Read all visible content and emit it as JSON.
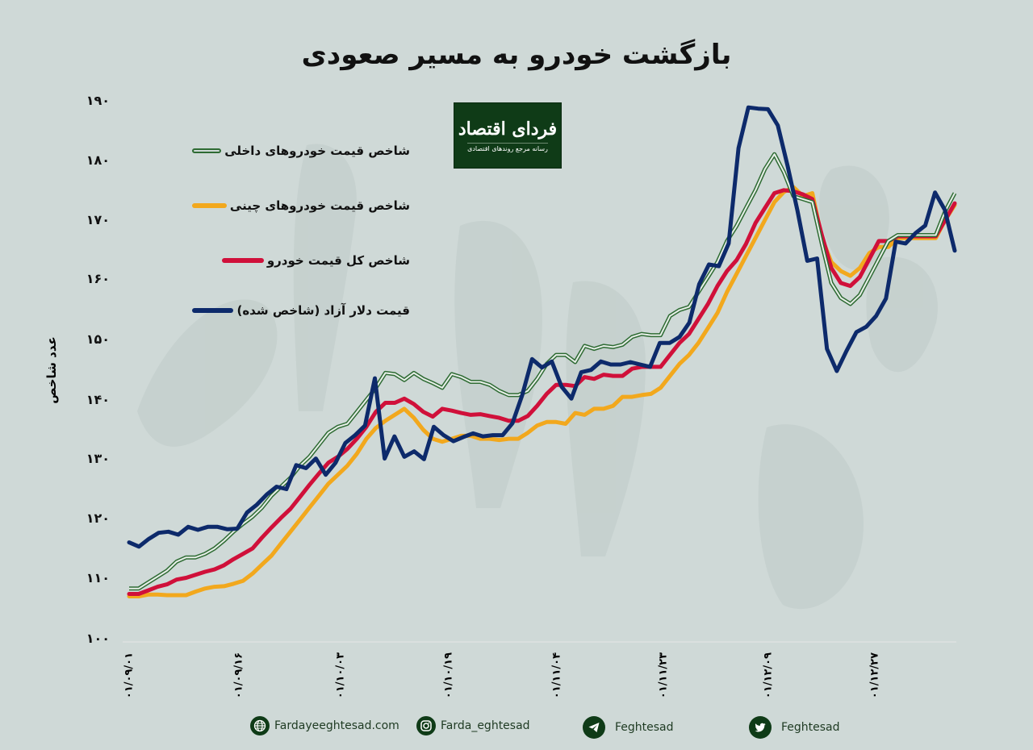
{
  "title": "بازگشت خودرو به مسیر صعودی",
  "logo": {
    "main": "فردای اقتصاد",
    "sub": "رسانه مرجع روندهای اقتصادی"
  },
  "yaxis": {
    "label": "عدد شاخص",
    "ticks": [
      "۱۹۰",
      "۱۸۰",
      "۱۷۰",
      "۱۶۰",
      "۱۵۰",
      "۱۴۰",
      "۱۳۰",
      "۱۲۰",
      "۱۱۰",
      "۱۰۰"
    ]
  },
  "xaxis": {
    "ticks": [
      "۰۱/۰۹/۰۱",
      "۰۱/۰۹/۱۶",
      "۰۱/۱۰/۰۳",
      "۰۱/۱۰/۱۹",
      "۰۱/۱۱/۰۴",
      "۰۱/۱۱/۲۳",
      "۰۱/۱۲/۰۹",
      "۰۱/۱۲/۲۷"
    ]
  },
  "legend": [
    {
      "label": "شاخص قیمت خودروهای داخلی",
      "color": "#2e6b33"
    },
    {
      "label": "شاخص قیمت خودروهای چینی",
      "color": "#f2a81d"
    },
    {
      "label": "شاخص کل قیمت خودرو",
      "color": "#d0103a"
    },
    {
      "label": "قیمت دلار آزاد (شاخص شده)",
      "color": "#0d2a6b"
    }
  ],
  "footer": [
    {
      "icon": "globe-icon",
      "text": "Fardayeeghtesad.com"
    },
    {
      "icon": "instagram-icon",
      "text": "Farda_eghtesad"
    },
    {
      "icon": "telegram-icon",
      "text": "Feghtesad"
    },
    {
      "icon": "twitter-icon",
      "text": "Feghtesad"
    }
  ],
  "chart_data": {
    "type": "line",
    "title": "بازگشت خودرو به مسیر صعودی",
    "xlabel": "",
    "ylabel": "عدد شاخص",
    "ylim": [
      100,
      190
    ],
    "x_tick_labels": [
      "01/09/01",
      "01/09/16",
      "01/10/03",
      "01/10/19",
      "01/11/04",
      "01/11/23",
      "01/12/09",
      "01/12/27"
    ],
    "legend_position": "upper-left",
    "grid": false,
    "series": [
      {
        "name": "شاخص قیمت خودروهای داخلی",
        "color": "#2e6b33",
        "values": [
          108.5,
          108.5,
          109.5,
          110.5,
          111.5,
          113,
          113.7,
          113.7,
          114.3,
          115.2,
          116.5,
          118,
          119.3,
          120.5,
          122,
          124,
          125.5,
          127,
          129,
          130.5,
          132.5,
          134.5,
          135.5,
          136,
          138,
          140,
          142,
          144.5,
          144.3,
          143.3,
          144.5,
          143.5,
          142.8,
          142,
          144.3,
          143.8,
          143,
          143,
          142.5,
          141.5,
          140.8,
          140.8,
          141.5,
          143.5,
          146,
          147.5,
          147.5,
          146.3,
          149,
          148.5,
          149,
          148.8,
          149.2,
          150.5,
          151,
          150.8,
          150.8,
          154,
          155,
          155.5,
          158,
          160.5,
          163,
          166.5,
          169,
          172,
          175,
          178.5,
          181,
          178,
          174,
          173.5,
          173,
          166,
          159.5,
          157,
          156,
          157.5,
          160.5,
          163.5,
          166.5,
          167.5,
          167.5,
          167.5,
          167.5,
          167.5,
          171.5,
          174.5
        ]
      },
      {
        "name": "شاخص قیمت خودروهای چینی",
        "color": "#f2a81d",
        "values": [
          107.2,
          107.2,
          107.5,
          107.5,
          107.4,
          107.4,
          107.4,
          108,
          108.5,
          108.8,
          108.9,
          109.3,
          109.8,
          111,
          112.5,
          114,
          116,
          118,
          120,
          122,
          124,
          126,
          127.5,
          129,
          131,
          133.5,
          135.3,
          136.5,
          137.5,
          138.5,
          137,
          135,
          133.5,
          133,
          133.5,
          134,
          134,
          133.5,
          133.5,
          133.3,
          133.5,
          133.5,
          134.5,
          135.7,
          136.3,
          136.3,
          136,
          137.8,
          137.5,
          138.5,
          138.5,
          139,
          140.5,
          140.5,
          140.8,
          141,
          142,
          144,
          146,
          147.5,
          149.5,
          152,
          154.5,
          158,
          161,
          164,
          167,
          170,
          173,
          174.7,
          175.5,
          174,
          174.5,
          167,
          163,
          161.5,
          160.7,
          162,
          164.5,
          165.5,
          165.5,
          167,
          167,
          167,
          167,
          167,
          170,
          172.5
        ]
      },
      {
        "name": "شاخص کل قیمت خودرو",
        "color": "#d0103a",
        "values": [
          107.6,
          107.6,
          108.2,
          108.8,
          109.2,
          110,
          110.3,
          110.8,
          111.3,
          111.7,
          112.4,
          113.4,
          114.3,
          115.2,
          117,
          118.7,
          120.3,
          121.8,
          123.8,
          125.8,
          127.7,
          129.5,
          130.5,
          131.8,
          133.5,
          135.5,
          138,
          139.5,
          139.5,
          140.2,
          139.3,
          138,
          137.2,
          138.5,
          138.2,
          137.8,
          137.5,
          137.6,
          137.3,
          137,
          136.5,
          136.5,
          137.3,
          139,
          141,
          142.5,
          142.5,
          142.3,
          143.8,
          143.5,
          144.2,
          144,
          144,
          145.2,
          145.5,
          145.5,
          145.5,
          147.5,
          149.5,
          151,
          153.5,
          156,
          159,
          161.5,
          163.3,
          166,
          169.5,
          172,
          174.5,
          175,
          174.8,
          174.3,
          173.5,
          167.5,
          162,
          159.5,
          159,
          160.5,
          163.5,
          166.5,
          166.5,
          167.3,
          167.3,
          167.3,
          167.3,
          167.3,
          170,
          172.8
        ]
      },
      {
        "name": "قیمت دلار آزاد (شاخص شده)",
        "color": "#0d2a6b",
        "values": [
          116.2,
          115.5,
          116.8,
          117.8,
          118,
          117.5,
          118.8,
          118.3,
          118.8,
          118.8,
          118.4,
          118.5,
          121.2,
          122.5,
          124.2,
          125.5,
          125.1,
          129.1,
          128.6,
          130.2,
          127.5,
          129.5,
          132.8,
          134.1,
          135.7,
          143.6,
          130.2,
          133.9,
          130.5,
          131.4,
          130.1,
          135.5,
          134.1,
          133.1,
          133.8,
          134.4,
          133.9,
          134.1,
          134.1,
          136.1,
          140.8,
          146.8,
          145.4,
          146.4,
          142.2,
          140.2,
          144.6,
          145,
          146.4,
          145.9,
          145.9,
          146.3,
          145.9,
          145.5,
          149.5,
          149.5,
          150.5,
          152.9,
          159.3,
          162.6,
          162.3,
          166.1,
          182,
          188.8,
          188.6,
          188.5,
          185.8,
          179,
          171.6,
          163.2,
          163.6,
          148.5,
          144.8,
          148.2,
          151.3,
          152.2,
          154,
          156.9,
          166.4,
          166.1,
          167.8,
          169.1,
          174.6,
          171.7,
          164.9
        ]
      }
    ]
  }
}
